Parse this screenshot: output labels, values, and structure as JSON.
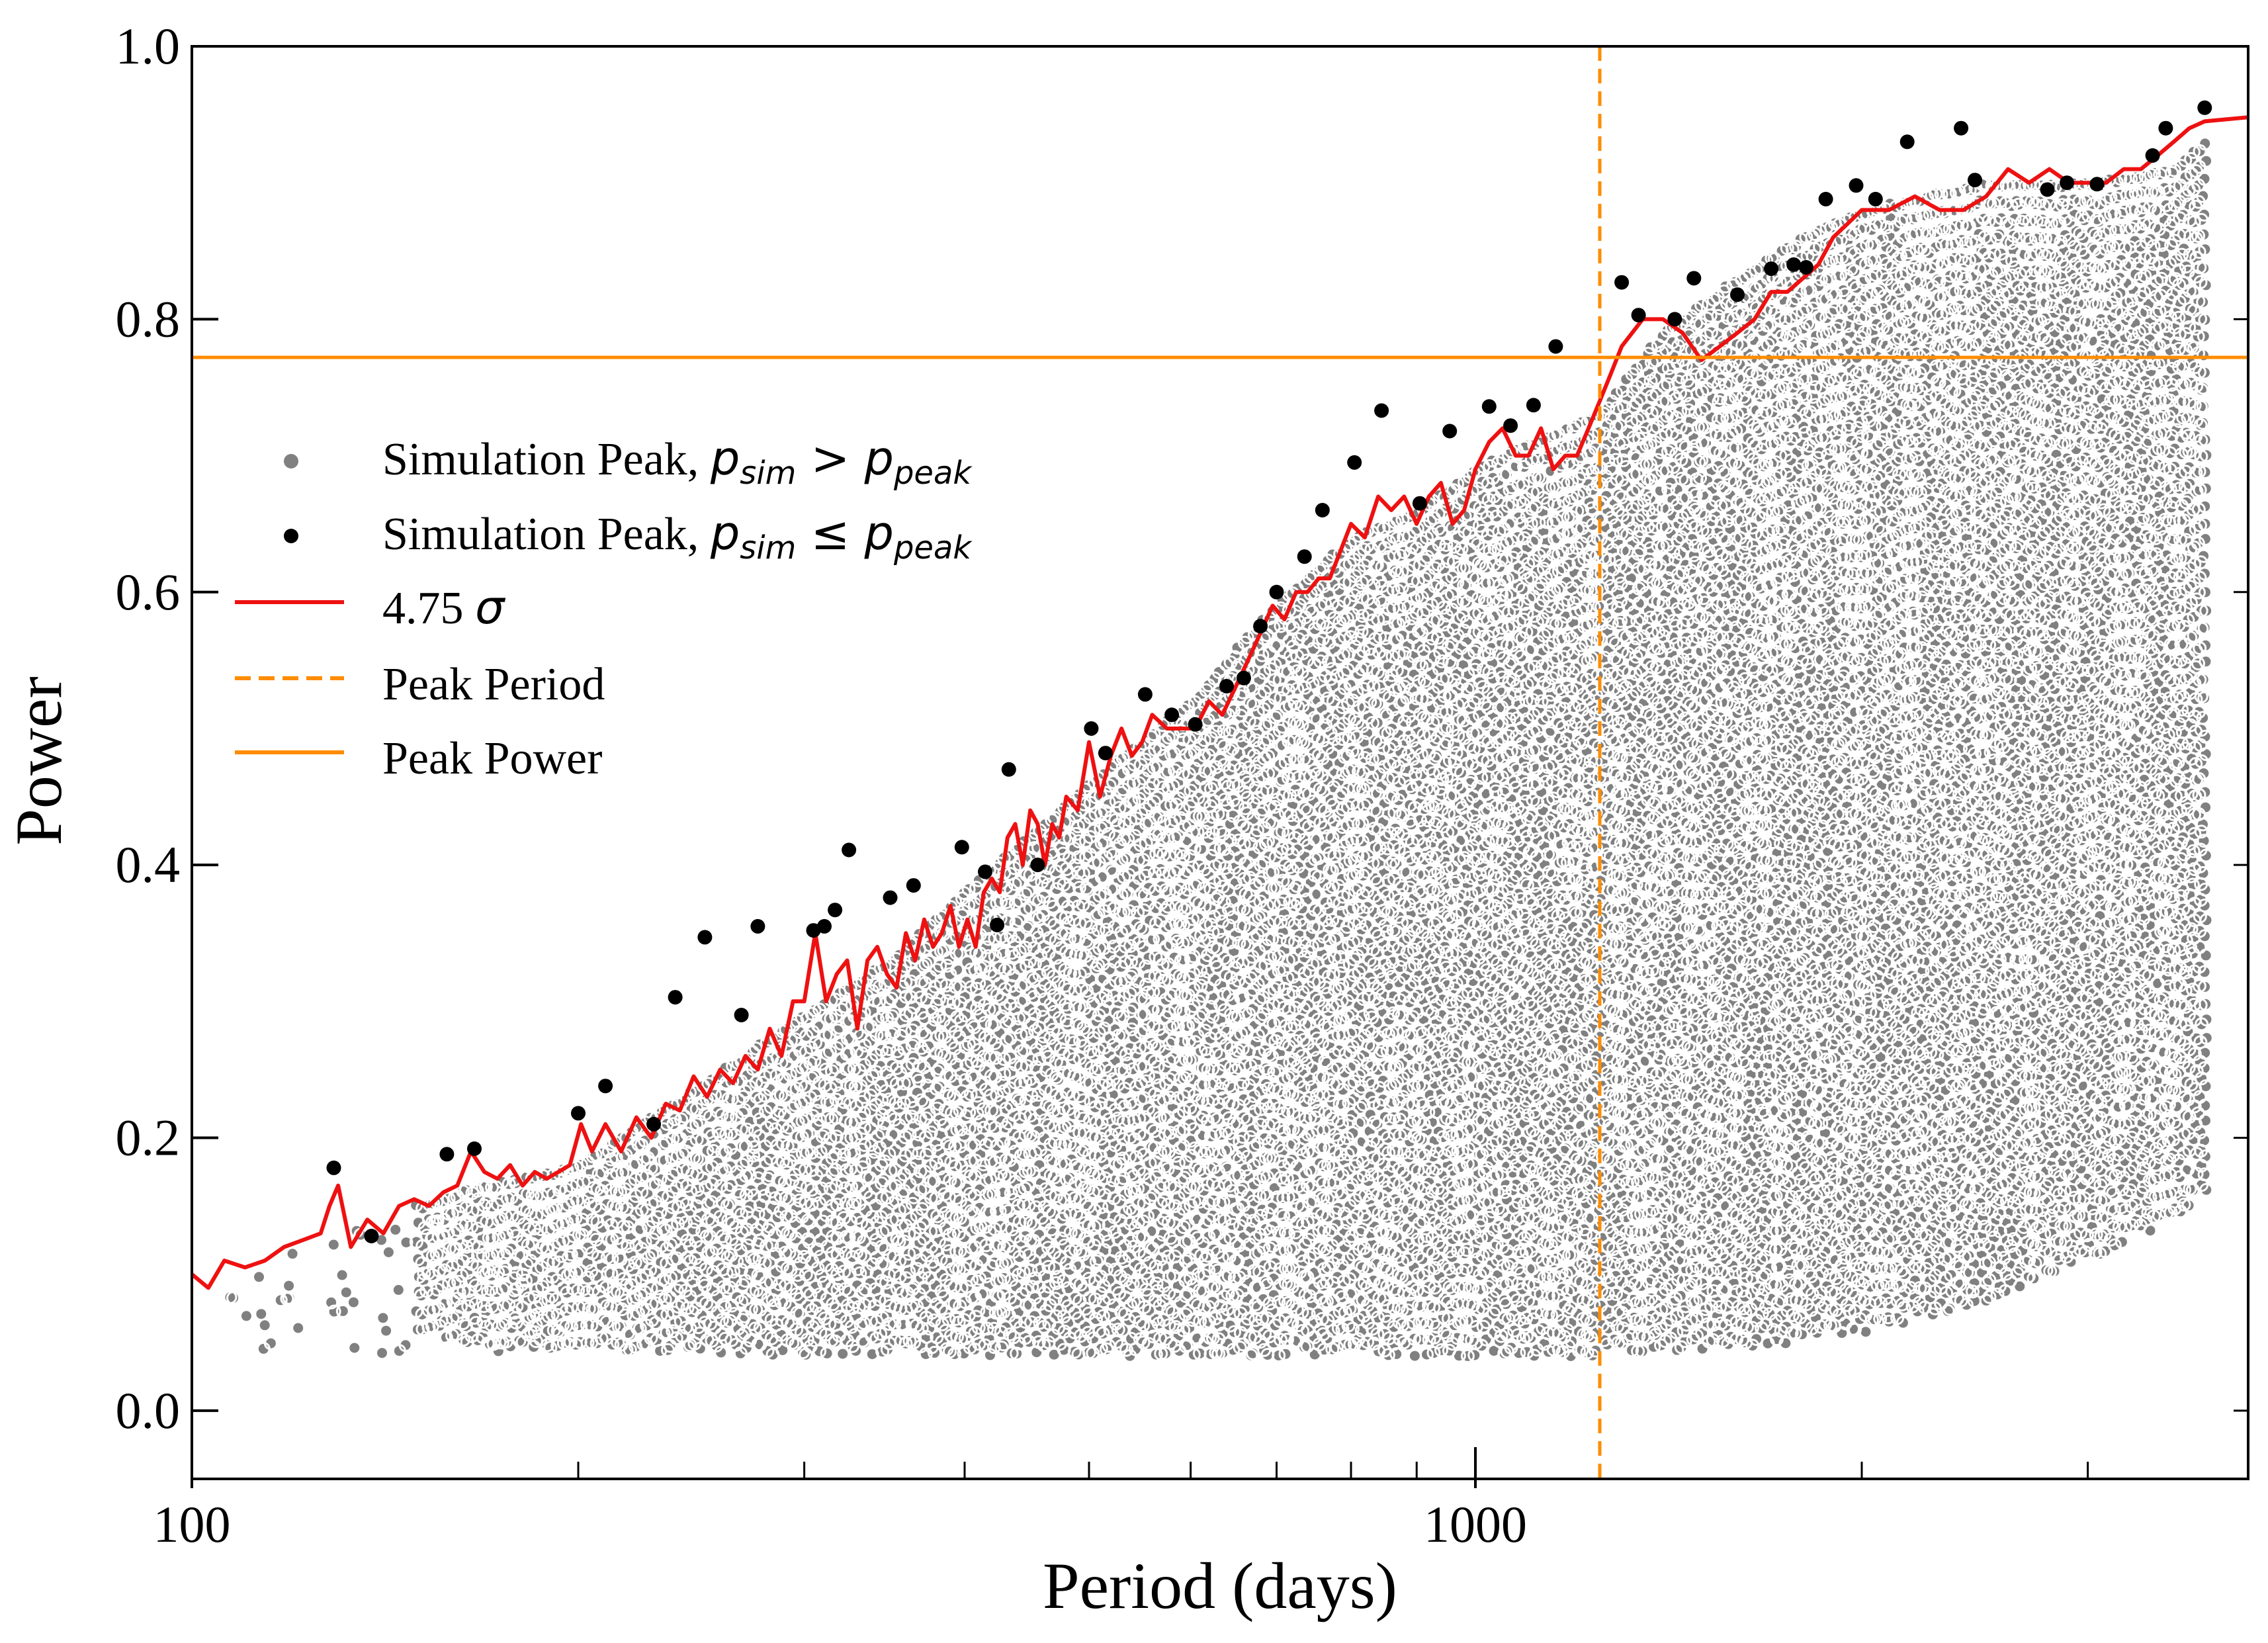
{
  "chart_data": {
    "type": "scatter",
    "xscale": "log",
    "xlim": [
      100,
      4000
    ],
    "ylim": [
      -0.05,
      1.0
    ],
    "xlabel": "Period (days)",
    "ylabel": "Power",
    "x_major_ticks": [
      100,
      1000
    ],
    "x_major_tick_labels": [
      "100",
      "1000"
    ],
    "x_minor_ticks": [
      200,
      300,
      400,
      500,
      600,
      700,
      800,
      900,
      2000,
      3000
    ],
    "y_ticks": [
      0.0,
      0.2,
      0.4,
      0.6,
      0.8,
      1.0
    ],
    "y_tick_labels": [
      "0.0",
      "0.2",
      "0.4",
      "0.6",
      "0.8",
      "1.0"
    ],
    "legend_position": "center-left",
    "legend": [
      {
        "key": "grey",
        "label_text": "Simulation Peak, ",
        "label_math": "p_sim > p_peak",
        "label_math_display": "psim > ppeak",
        "marker": "circle",
        "color": "#808080"
      },
      {
        "key": "black",
        "label_text": "Simulation Peak, ",
        "label_math": "p_sim ≤ p_peak",
        "label_math_display": "psim ≤ ppeak",
        "marker": "circle",
        "color": "#000000"
      },
      {
        "key": "sigma",
        "label_text": "4.75 ",
        "label_math": "σ",
        "label_math_display": "σ",
        "marker": "line",
        "color": "#ee1111"
      },
      {
        "key": "peak_period",
        "label_text": "Peak Period",
        "marker": "dashed-line",
        "color": "#ff8c00"
      },
      {
        "key": "peak_power",
        "label_text": "Peak Power",
        "marker": "line",
        "color": "#ff8c00"
      }
    ],
    "peak_period": 1250,
    "peak_power": 0.772,
    "grey_envelope": {
      "description": "dense cloud of grey simulation peaks; x columns from ~150 to ~3700 days",
      "upper_x": [
        100,
        130,
        160,
        200,
        250,
        300,
        350,
        400,
        500,
        600,
        700,
        800,
        900,
        1000,
        1100,
        1250,
        1400,
        1600,
        1800,
        2000,
        2500,
        3000,
        3500,
        3700
      ],
      "upper_y": [
        0.09,
        0.13,
        0.16,
        0.18,
        0.24,
        0.29,
        0.33,
        0.38,
        0.46,
        0.52,
        0.59,
        0.64,
        0.66,
        0.69,
        0.71,
        0.73,
        0.79,
        0.83,
        0.86,
        0.88,
        0.9,
        0.9,
        0.91,
        0.93
      ],
      "lower_x": [
        150,
        200,
        300,
        500,
        800,
        1200,
        1600,
        2000,
        2500,
        3000,
        3500,
        3700
      ],
      "lower_y": [
        0.05,
        0.045,
        0.04,
        0.04,
        0.04,
        0.04,
        0.045,
        0.055,
        0.08,
        0.11,
        0.14,
        0.155
      ]
    },
    "black_points": {
      "x": [
        129,
        138,
        158,
        166,
        200,
        210,
        229,
        238,
        251,
        268,
        276,
        305,
        311,
        317,
        325,
        350,
        365,
        398,
        415,
        424,
        433,
        456,
        502,
        515,
        553,
        580,
        605,
        640,
        660,
        680,
        700,
        736,
        760,
        805,
        845,
        905,
        955,
        1025,
        1065,
        1110,
        1155,
        1300,
        1340,
        1430,
        1480,
        1600,
        1700,
        1770,
        1810,
        1875,
        1980,
        2050,
        2170,
        2390,
        2450,
        2790,
        2890,
        3050,
        3370,
        3450,
        3700
      ],
      "y": [
        0.178,
        0.128,
        0.188,
        0.192,
        0.218,
        0.238,
        0.21,
        0.303,
        0.347,
        0.29,
        0.355,
        0.352,
        0.355,
        0.367,
        0.411,
        0.376,
        0.385,
        0.413,
        0.395,
        0.356,
        0.47,
        0.4,
        0.5,
        0.482,
        0.525,
        0.51,
        0.503,
        0.531,
        0.537,
        0.575,
        0.6,
        0.626,
        0.66,
        0.695,
        0.733,
        0.665,
        0.718,
        0.736,
        0.722,
        0.737,
        0.78,
        0.827,
        0.803,
        0.8,
        0.83,
        0.818,
        0.837,
        0.84,
        0.838,
        0.888,
        0.898,
        0.888,
        0.93,
        0.94,
        0.902,
        0.895,
        0.9,
        0.899,
        0.92,
        0.94,
        0.955
      ]
    },
    "sigma_line": {
      "name": "4.75 σ",
      "x": [
        100,
        103,
        106,
        110,
        114,
        118,
        122,
        126,
        128,
        130,
        133,
        137,
        141,
        145,
        149,
        153,
        157,
        161,
        165,
        169,
        173,
        177,
        181,
        185,
        189,
        193,
        197,
        201,
        205,
        210,
        216,
        222,
        228,
        234,
        240,
        246,
        252,
        258,
        264,
        270,
        276,
        282,
        288,
        294,
        300,
        306,
        312,
        318,
        324,
        330,
        336,
        342,
        348,
        354,
        360,
        366,
        372,
        378,
        384,
        390,
        396,
        402,
        408,
        414,
        420,
        426,
        432,
        438,
        444,
        450,
        456,
        462,
        468,
        474,
        480,
        490,
        500,
        510,
        520,
        530,
        540,
        550,
        560,
        575,
        590,
        605,
        620,
        635,
        650,
        665,
        680,
        695,
        710,
        725,
        740,
        755,
        770,
        785,
        800,
        820,
        840,
        860,
        880,
        900,
        920,
        940,
        960,
        980,
        1000,
        1025,
        1050,
        1075,
        1100,
        1125,
        1150,
        1175,
        1200,
        1225,
        1250,
        1275,
        1300,
        1350,
        1400,
        1450,
        1500,
        1550,
        1600,
        1650,
        1700,
        1750,
        1800,
        1850,
        1900,
        1950,
        2000,
        2100,
        2200,
        2300,
        2400,
        2500,
        2600,
        2700,
        2800,
        2900,
        3000,
        3100,
        3200,
        3300,
        3400,
        3500,
        3600,
        3700,
        4000
      ],
      "y": [
        0.1,
        0.09,
        0.11,
        0.105,
        0.11,
        0.12,
        0.125,
        0.13,
        0.15,
        0.165,
        0.12,
        0.14,
        0.13,
        0.15,
        0.155,
        0.15,
        0.16,
        0.165,
        0.19,
        0.175,
        0.17,
        0.18,
        0.165,
        0.175,
        0.17,
        0.175,
        0.18,
        0.21,
        0.19,
        0.21,
        0.19,
        0.215,
        0.2,
        0.225,
        0.22,
        0.245,
        0.23,
        0.25,
        0.24,
        0.26,
        0.25,
        0.28,
        0.26,
        0.3,
        0.3,
        0.35,
        0.3,
        0.32,
        0.33,
        0.28,
        0.33,
        0.34,
        0.32,
        0.31,
        0.35,
        0.33,
        0.36,
        0.34,
        0.35,
        0.37,
        0.34,
        0.36,
        0.34,
        0.38,
        0.39,
        0.38,
        0.42,
        0.43,
        0.4,
        0.44,
        0.43,
        0.4,
        0.43,
        0.42,
        0.45,
        0.44,
        0.49,
        0.45,
        0.48,
        0.5,
        0.48,
        0.49,
        0.51,
        0.5,
        0.5,
        0.5,
        0.52,
        0.51,
        0.53,
        0.55,
        0.57,
        0.59,
        0.58,
        0.6,
        0.6,
        0.61,
        0.61,
        0.63,
        0.65,
        0.64,
        0.67,
        0.66,
        0.67,
        0.65,
        0.67,
        0.68,
        0.65,
        0.66,
        0.69,
        0.71,
        0.72,
        0.7,
        0.7,
        0.72,
        0.69,
        0.7,
        0.7,
        0.72,
        0.74,
        0.76,
        0.78,
        0.8,
        0.8,
        0.79,
        0.77,
        0.78,
        0.79,
        0.8,
        0.82,
        0.82,
        0.83,
        0.84,
        0.86,
        0.87,
        0.88,
        0.88,
        0.89,
        0.88,
        0.88,
        0.89,
        0.91,
        0.9,
        0.91,
        0.9,
        0.9,
        0.9,
        0.91,
        0.91,
        0.92,
        0.93,
        0.94,
        0.945,
        0.948
      ]
    }
  }
}
